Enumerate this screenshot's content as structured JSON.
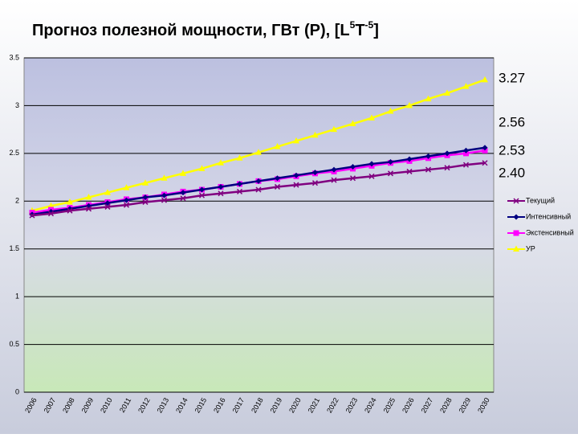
{
  "chart_data": {
    "type": "line",
    "title": [
      "Прогноз полезной мощности, ГВт (P), [L",
      "5",
      "T",
      "-5",
      "]"
    ],
    "categories": [
      "2006",
      "2007",
      "2008",
      "2009",
      "2010",
      "2011",
      "2012",
      "2013",
      "2014",
      "2015",
      "2016",
      "2017",
      "2018",
      "2019",
      "2020",
      "2021",
      "2022",
      "2023",
      "2024",
      "2025",
      "2026",
      "2027",
      "2028",
      "2029",
      "2030"
    ],
    "series": [
      {
        "name": "Текущий",
        "color": "#800080",
        "marker": "x",
        "values": [
          1.85,
          1.87,
          1.9,
          1.92,
          1.94,
          1.96,
          1.99,
          2.01,
          2.03,
          2.06,
          2.08,
          2.1,
          2.12,
          2.15,
          2.17,
          2.19,
          2.22,
          2.24,
          2.26,
          2.29,
          2.31,
          2.33,
          2.35,
          2.38,
          2.4
        ]
      },
      {
        "name": "Интенсивный",
        "color": "#000080",
        "marker": "diamond",
        "values": [
          1.86,
          1.89,
          1.92,
          1.95,
          1.98,
          2.01,
          2.04,
          2.06,
          2.09,
          2.12,
          2.15,
          2.18,
          2.21,
          2.24,
          2.27,
          2.3,
          2.33,
          2.36,
          2.39,
          2.41,
          2.44,
          2.47,
          2.5,
          2.53,
          2.56
        ]
      },
      {
        "name": "Экстенсивный",
        "color": "#ff00ff",
        "marker": "square",
        "values": [
          1.88,
          1.91,
          1.93,
          1.96,
          1.99,
          2.02,
          2.04,
          2.07,
          2.1,
          2.12,
          2.15,
          2.18,
          2.21,
          2.23,
          2.26,
          2.29,
          2.31,
          2.34,
          2.37,
          2.4,
          2.42,
          2.45,
          2.48,
          2.5,
          2.53
        ]
      },
      {
        "name": "УР",
        "color": "#ffff00",
        "marker": "triangle",
        "values": [
          1.9,
          1.95,
          1.99,
          2.04,
          2.09,
          2.14,
          2.19,
          2.24,
          2.29,
          2.34,
          2.4,
          2.45,
          2.51,
          2.57,
          2.63,
          2.69,
          2.75,
          2.81,
          2.87,
          2.94,
          3.0,
          3.07,
          3.13,
          3.2,
          3.27
        ]
      }
    ],
    "annotations": [
      "3.27",
      "2.56",
      "2.53",
      "2.40"
    ],
    "ylim": [
      0,
      3.5
    ],
    "yticks": [
      0,
      0.5,
      1,
      1.5,
      2,
      2.5,
      3,
      3.5
    ],
    "grid": true,
    "legend": "right"
  }
}
